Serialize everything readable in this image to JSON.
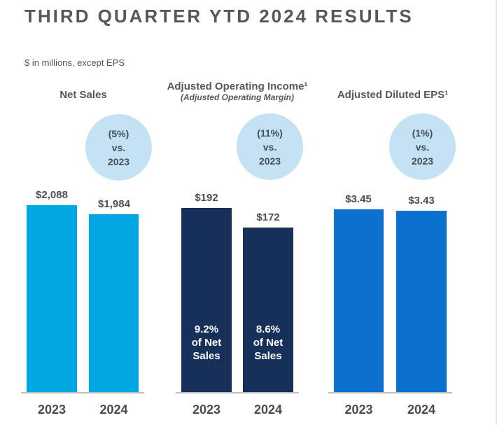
{
  "page": {
    "title": "THIRD QUARTER YTD 2024 RESULTS",
    "subtitle": "$ in millions, except EPS"
  },
  "colors": {
    "title_text": "#55575B",
    "value_text": "#4E4F51",
    "year_text": "#4B4C4E",
    "axis_line": "#BFBFBF",
    "badge_circle": "#C5E2F4",
    "badge_text": "#454E58",
    "net_sales_bar": "#00A7E1",
    "operating_income_bar": "#16305A",
    "eps_bar": "#0B70CE",
    "inside_label_text": "#FFFFFF"
  },
  "chart_data": [
    {
      "type": "bar",
      "title": "Net Sales",
      "subtitle": "",
      "badge": {
        "change": "(5%)",
        "vs": "vs.",
        "year": "2023"
      },
      "categories": [
        "2023",
        "2024"
      ],
      "values": [
        2088,
        1984
      ],
      "value_labels": [
        "$2,088",
        "$1,984"
      ],
      "inside_labels": [
        "",
        ""
      ],
      "bar_color": "#00A7E1",
      "ylim": [
        0,
        2088
      ],
      "grid": false,
      "legend": "none"
    },
    {
      "type": "bar",
      "title": "Adjusted Operating Income¹",
      "subtitle": "(Adjusted Operating Margin)",
      "badge": {
        "change": "(11%)",
        "vs": "vs.",
        "year": "2023"
      },
      "categories": [
        "2023",
        "2024"
      ],
      "values": [
        192,
        172
      ],
      "value_labels": [
        "$192",
        "$172"
      ],
      "inside_labels": [
        "9.2%\nof Net\nSales",
        "8.6%\nof Net\nSales"
      ],
      "bar_color": "#16305A",
      "ylim": [
        0,
        192
      ],
      "grid": false,
      "legend": "none"
    },
    {
      "type": "bar",
      "title": "Adjusted Diluted EPS¹",
      "subtitle": "",
      "badge": {
        "change": "(1%)",
        "vs": "vs.",
        "year": "2023"
      },
      "categories": [
        "2023",
        "2024"
      ],
      "values": [
        3.45,
        3.43
      ],
      "value_labels": [
        "$3.45",
        "$3.43"
      ],
      "inside_labels": [
        "",
        ""
      ],
      "bar_color": "#0B70CE",
      "ylim": [
        0,
        3.45
      ],
      "grid": false,
      "legend": "none"
    }
  ]
}
